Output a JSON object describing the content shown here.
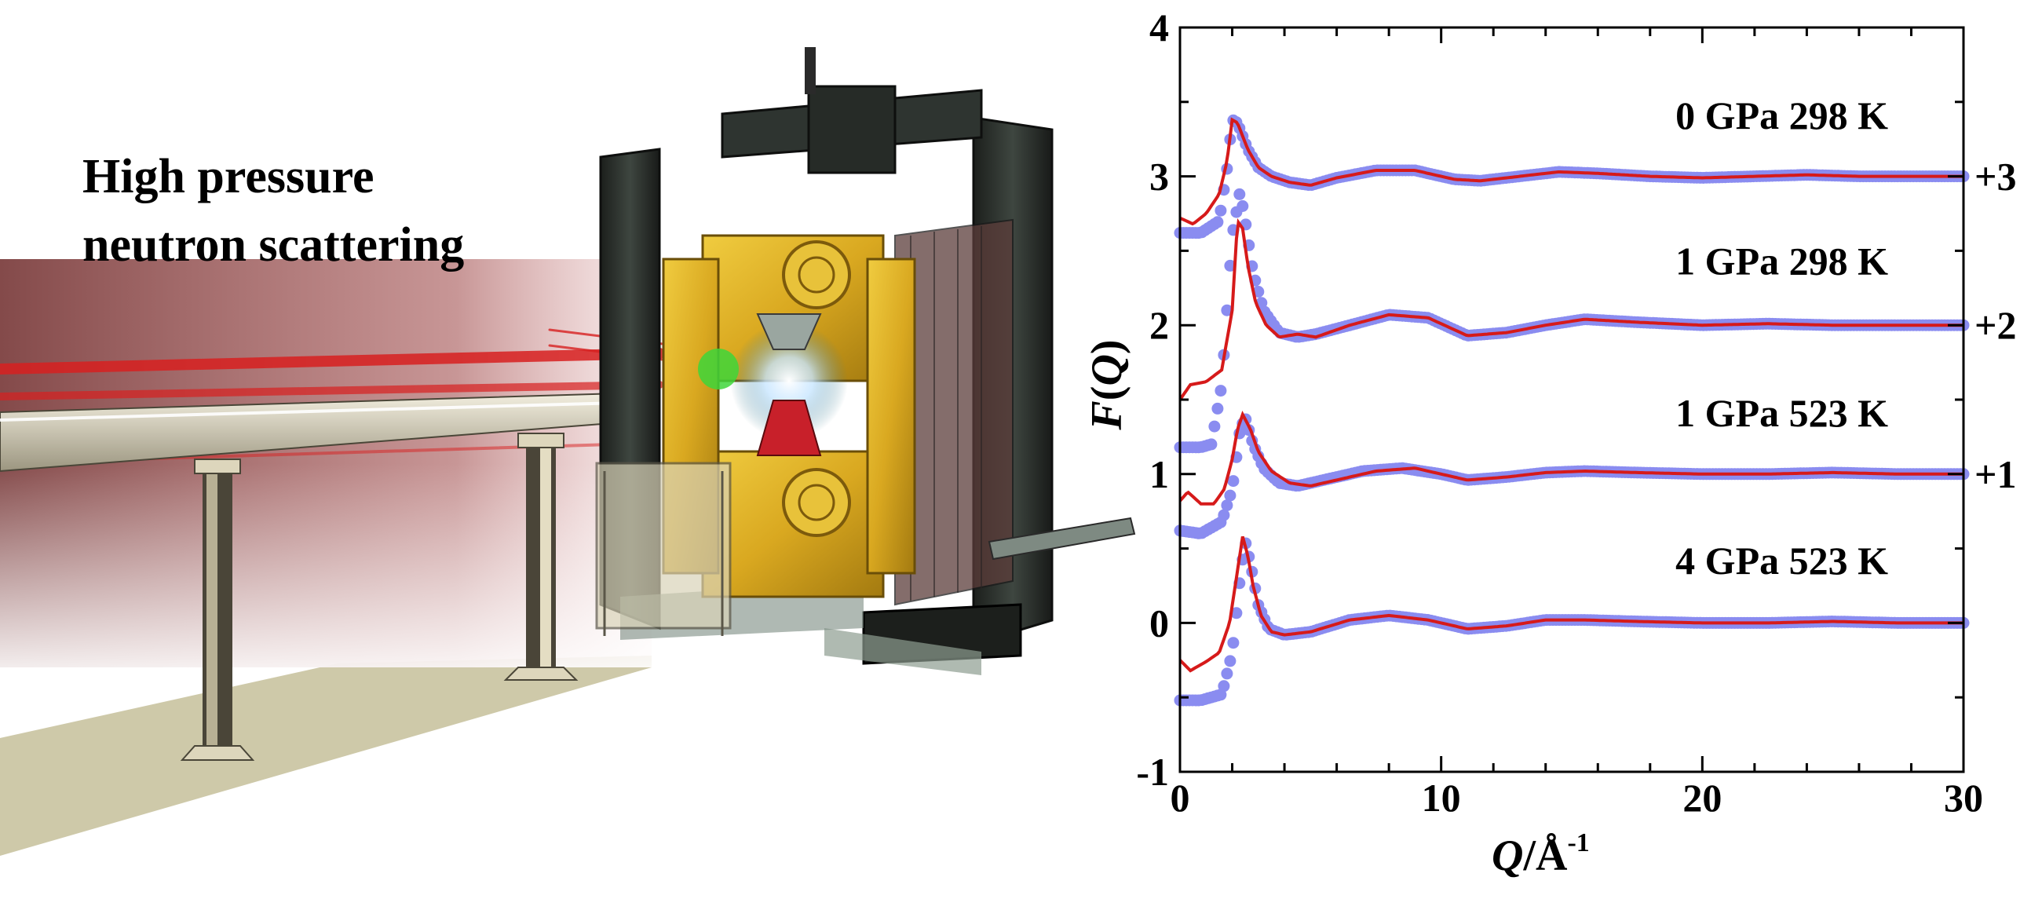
{
  "illustration": {
    "title_line1": "High pressure",
    "title_line2": "neutron scattering"
  },
  "colors": {
    "experimental_points": "#8a8cf0",
    "fit_curve": "#d61a1a",
    "beam": "#d82020",
    "instrument_yellow": "#e0b428"
  },
  "chart_data": {
    "type": "line",
    "xlabel_main": "Q",
    "xlabel_unit": "/Å",
    "xlabel_exp": "-1",
    "ylabel_func": "F",
    "ylabel_var": "Q",
    "xlim": [
      0,
      30
    ],
    "ylim": [
      -1,
      4
    ],
    "xticks": [
      0,
      10,
      20,
      30
    ],
    "yticks": [
      -1,
      0,
      1,
      2,
      3,
      4
    ],
    "grid": false,
    "series": [
      {
        "label": "0 GPa 298 K",
        "offset": 3,
        "offset_label": "+3",
        "points_x": [
          0,
          0.8,
          1.5,
          1.8,
          2.0,
          2.2,
          2.6,
          3.0,
          3.5,
          4.2,
          5.0,
          6.0,
          7.5,
          9.0,
          10.5,
          11.5,
          13.0,
          14.5,
          16.0,
          18.0,
          20.0,
          22.0,
          24.0,
          26.0,
          28.0,
          30.0
        ],
        "points_y": [
          -0.38,
          -0.38,
          -0.3,
          0.05,
          0.38,
          0.36,
          0.18,
          0.06,
          0.0,
          -0.04,
          -0.06,
          -0.01,
          0.04,
          0.04,
          -0.02,
          -0.03,
          0.0,
          0.03,
          0.02,
          0.0,
          -0.01,
          0.0,
          0.01,
          0.0,
          0.0,
          0.0
        ],
        "fit_x": [
          0,
          0.5,
          1.0,
          1.5,
          1.8,
          2.0,
          2.2,
          2.6,
          3.0,
          3.5,
          4.2,
          5.0,
          6.0,
          7.5,
          9.0,
          10.5,
          11.5,
          13.0,
          14.5,
          16.0,
          18.0,
          20.0,
          22.0,
          24.0,
          26.0,
          28.0,
          30.0
        ],
        "fit_y": [
          -0.28,
          -0.32,
          -0.25,
          -0.12,
          0.1,
          0.38,
          0.36,
          0.18,
          0.06,
          0.0,
          -0.04,
          -0.06,
          -0.01,
          0.04,
          0.04,
          -0.02,
          -0.03,
          0.0,
          0.03,
          0.02,
          0.0,
          -0.01,
          0.0,
          0.01,
          0.0,
          0.0,
          0.0
        ]
      },
      {
        "label": "1 GPa 298 K",
        "offset": 2,
        "offset_label": "+2",
        "points_x": [
          0,
          0.8,
          1.2,
          1.6,
          2.0,
          2.3,
          2.5,
          2.8,
          3.2,
          3.8,
          4.5,
          5.2,
          6.5,
          8.0,
          9.5,
          11.0,
          12.5,
          14.0,
          15.5,
          17.5,
          20.0,
          22.5,
          25.0,
          27.5,
          30.0
        ],
        "points_y": [
          -0.82,
          -0.82,
          -0.8,
          -0.4,
          0.6,
          0.9,
          0.7,
          0.35,
          0.1,
          -0.05,
          -0.08,
          -0.06,
          0.0,
          0.07,
          0.05,
          -0.07,
          -0.05,
          0.0,
          0.04,
          0.02,
          0.0,
          0.01,
          0.0,
          0.0,
          0.0
        ],
        "fit_x": [
          0,
          0.4,
          1.0,
          1.6,
          2.0,
          2.2,
          2.4,
          2.6,
          2.9,
          3.3,
          3.8,
          4.5,
          5.2,
          6.5,
          8.0,
          9.5,
          11.0,
          12.5,
          14.0,
          15.5,
          17.5,
          20.0,
          22.5,
          25.0,
          27.5,
          30.0
        ],
        "fit_y": [
          -0.5,
          -0.4,
          -0.38,
          -0.3,
          0.1,
          0.7,
          0.65,
          0.4,
          0.15,
          0.0,
          -0.08,
          -0.06,
          -0.08,
          0.0,
          0.07,
          0.05,
          -0.07,
          -0.05,
          0.0,
          0.04,
          0.02,
          0.0,
          0.01,
          0.0,
          0.0,
          0.0
        ]
      },
      {
        "label": "1 GPa 523 K",
        "offset": 1,
        "offset_label": "+1",
        "points_x": [
          0,
          0.8,
          1.6,
          2.0,
          2.3,
          2.5,
          2.8,
          3.2,
          3.8,
          4.5,
          5.5,
          7.0,
          8.5,
          10.0,
          11.0,
          12.5,
          14.0,
          15.5,
          17.5,
          20.0,
          22.5,
          25.0,
          27.5,
          30.0
        ],
        "points_y": [
          -0.38,
          -0.4,
          -0.32,
          -0.1,
          0.3,
          0.38,
          0.2,
          0.04,
          -0.06,
          -0.08,
          -0.04,
          0.02,
          0.04,
          0.0,
          -0.04,
          -0.02,
          0.01,
          0.02,
          0.01,
          0.0,
          0.0,
          0.01,
          0.0,
          0.0
        ],
        "fit_x": [
          0,
          0.3,
          0.8,
          1.3,
          1.7,
          2.0,
          2.2,
          2.4,
          2.7,
          3.0,
          3.5,
          4.2,
          5.0,
          6.0,
          7.5,
          9.0,
          10.0,
          11.0,
          12.5,
          14.0,
          15.5,
          17.5,
          20.0,
          22.5,
          25.0,
          27.5,
          30.0
        ],
        "fit_y": [
          -0.18,
          -0.12,
          -0.2,
          -0.2,
          -0.1,
          0.1,
          0.3,
          0.4,
          0.3,
          0.15,
          0.02,
          -0.06,
          -0.08,
          -0.04,
          0.02,
          0.04,
          0.0,
          -0.04,
          -0.02,
          0.01,
          0.02,
          0.01,
          0.0,
          0.0,
          0.01,
          0.0,
          0.0
        ]
      },
      {
        "label": "4 GPa 523 K",
        "offset": 0,
        "offset_label": "",
        "points_x": [
          0,
          0.8,
          1.6,
          2.0,
          2.3,
          2.5,
          2.7,
          3.0,
          3.4,
          4.0,
          5.0,
          6.5,
          8.0,
          9.5,
          11.0,
          12.5,
          14.0,
          15.5,
          17.5,
          20.0,
          22.5,
          25.0,
          27.5,
          30.0
        ],
        "points_y": [
          -0.52,
          -0.52,
          -0.48,
          -0.2,
          0.3,
          0.55,
          0.4,
          0.12,
          -0.04,
          -0.08,
          -0.06,
          0.02,
          0.05,
          0.02,
          -0.04,
          -0.02,
          0.02,
          0.02,
          0.01,
          0.0,
          0.0,
          0.01,
          0.0,
          0.0
        ],
        "fit_x": [
          0,
          0.4,
          1.0,
          1.5,
          1.9,
          2.2,
          2.4,
          2.6,
          2.8,
          3.1,
          3.5,
          4.0,
          5.0,
          6.5,
          8.0,
          9.5,
          11.0,
          12.5,
          14.0,
          15.5,
          17.5,
          20.0,
          22.5,
          25.0,
          27.5,
          30.0
        ],
        "fit_y": [
          -0.25,
          -0.32,
          -0.26,
          -0.2,
          0.0,
          0.35,
          0.58,
          0.45,
          0.25,
          0.05,
          -0.06,
          -0.08,
          -0.06,
          0.02,
          0.05,
          0.02,
          -0.04,
          -0.02,
          0.02,
          0.02,
          0.01,
          0.0,
          0.0,
          0.01,
          0.0,
          0.0
        ]
      }
    ]
  }
}
